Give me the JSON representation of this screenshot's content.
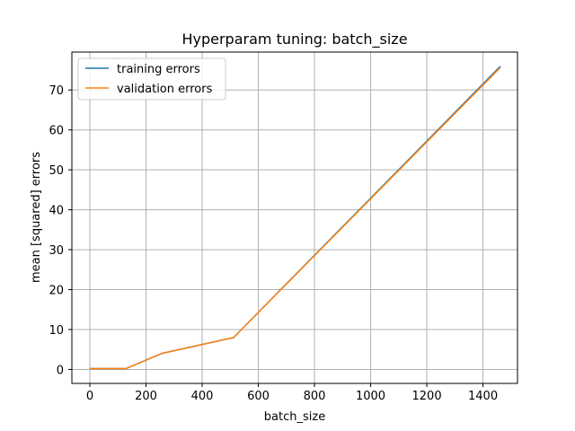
{
  "chart_data": {
    "type": "line",
    "title": "Hyperparam tuning: batch_size",
    "xlabel": "batch_size",
    "ylabel": "mean [squared] errors",
    "xlim": [
      -64,
      1523
    ],
    "ylim": [
      -3.5,
      79.5
    ],
    "x_ticks": [
      0,
      200,
      400,
      600,
      800,
      1000,
      1200,
      1400
    ],
    "y_ticks": [
      0,
      10,
      20,
      30,
      40,
      50,
      60,
      70
    ],
    "grid": true,
    "legend_position": "top-left",
    "series": [
      {
        "name": "training errors",
        "color": "#1f77b4",
        "x": [
          1,
          128,
          256,
          512,
          1460
        ],
        "y": [
          0.2,
          0.2,
          4.0,
          8.0,
          75.8
        ]
      },
      {
        "name": "validation errors",
        "color": "#ff7f0e",
        "x": [
          1,
          128,
          256,
          512,
          1460
        ],
        "y": [
          0.2,
          0.2,
          4.0,
          8.0,
          75.5
        ]
      }
    ]
  }
}
